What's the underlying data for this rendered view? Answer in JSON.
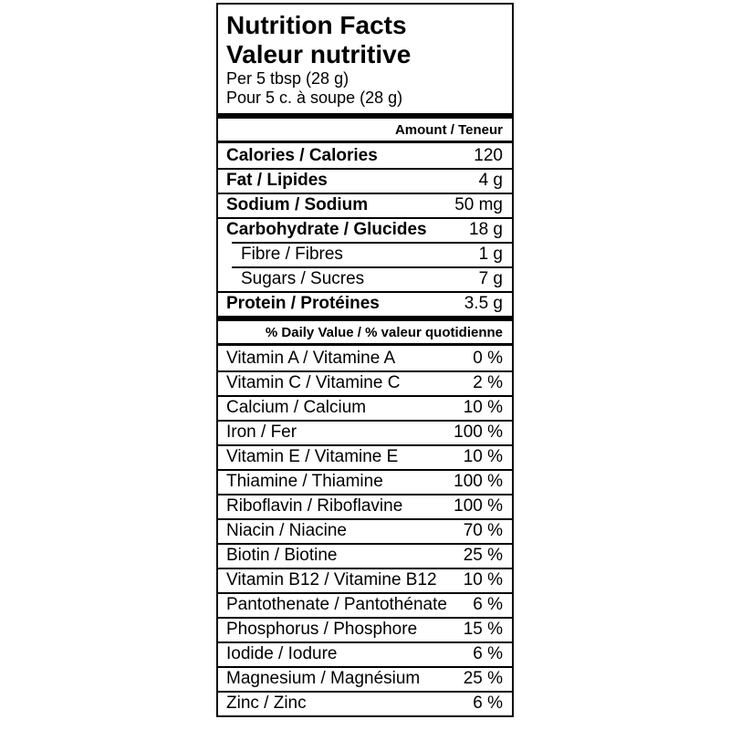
{
  "label": {
    "title_en": "Nutrition Facts",
    "title_fr": "Valeur nutritive",
    "serving_en": "Per 5 tbsp (28 g)",
    "serving_fr": "Pour 5 c. à soupe (28 g)",
    "amount_header": "Amount / Teneur",
    "daily_value_header": "% Daily Value / % valeur quotidienne",
    "colors": {
      "text": "#000000",
      "background": "#ffffff",
      "rule": "#000000"
    },
    "nutrients": [
      {
        "label": "Calories / Calories",
        "value": "120"
      },
      {
        "label": "Fat / Lipides",
        "value": "4 g"
      },
      {
        "label": "Sodium / Sodium",
        "value": "50 mg"
      },
      {
        "label": "Carbohydrate / Glucides",
        "value": "18 g"
      },
      {
        "label": "Fibre / Fibres",
        "value": "1 g"
      },
      {
        "label": "Sugars / Sucres",
        "value": "7 g"
      },
      {
        "label": "Protein / Protéines",
        "value": "3.5 g"
      }
    ],
    "daily_values": [
      {
        "label": "Vitamin A / Vitamine A",
        "value": "0 %"
      },
      {
        "label": "Vitamin C / Vitamine C",
        "value": "2 %"
      },
      {
        "label": "Calcium / Calcium",
        "value": "10 %"
      },
      {
        "label": "Iron / Fer",
        "value": "100 %"
      },
      {
        "label": "Vitamin E / Vitamine E",
        "value": "10 %"
      },
      {
        "label": "Thiamine / Thiamine",
        "value": "100 %"
      },
      {
        "label": "Riboflavin / Riboflavine",
        "value": "100 %"
      },
      {
        "label": "Niacin / Niacine",
        "value": "70 %"
      },
      {
        "label": "Biotin / Biotine",
        "value": "25 %"
      },
      {
        "label": "Vitamin B12 / Vitamine B12",
        "value": "10 %"
      },
      {
        "label": "Pantothenate / Pantothénate",
        "value": "6 %"
      },
      {
        "label": "Phosphorus / Phosphore",
        "value": "15 %"
      },
      {
        "label": "Iodide / Iodure",
        "value": "6 %"
      },
      {
        "label": "Magnesium / Magnésium",
        "value": "25 %"
      },
      {
        "label": "Zinc / Zinc",
        "value": "6 %"
      }
    ]
  }
}
